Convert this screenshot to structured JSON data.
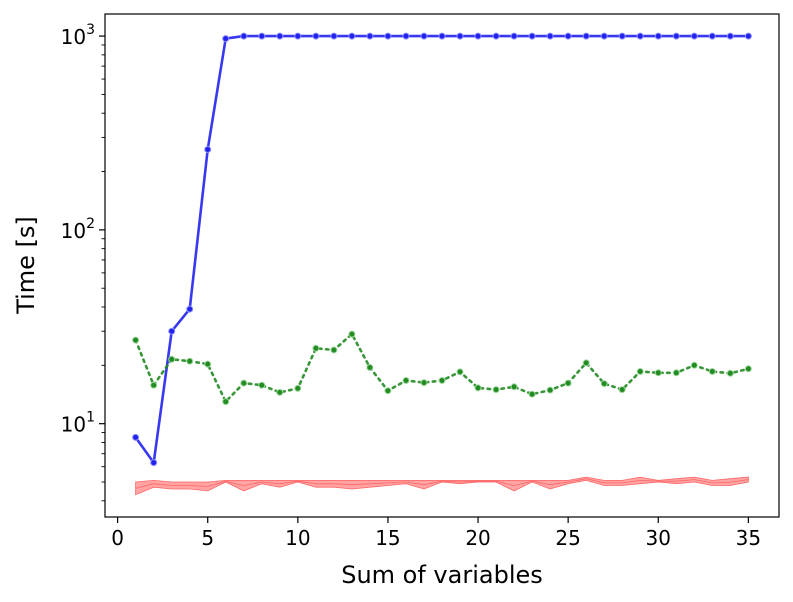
{
  "chart_data": {
    "type": "line",
    "xlabel": "Sum of variables",
    "ylabel": "Time [s]",
    "xlim": [
      -0.7,
      36.7
    ],
    "ylim": [
      3.3,
      1300
    ],
    "yscale": "log",
    "xticks": [
      0,
      5,
      10,
      15,
      20,
      25,
      30,
      35
    ],
    "xtick_labels": [
      "0",
      "5",
      "10",
      "15",
      "20",
      "25",
      "30",
      "35"
    ],
    "yticks": [
      10,
      100,
      1000
    ],
    "ytick_labels": [
      {
        "base": "10",
        "exp": "1"
      },
      {
        "base": "10",
        "exp": "2"
      },
      {
        "base": "10",
        "exp": "3"
      }
    ],
    "grid": false,
    "legend": false,
    "series": [
      {
        "color": "#2222ee",
        "style": "solid-markers",
        "x": [
          1,
          2,
          3,
          4,
          5,
          6,
          7,
          8,
          9,
          10,
          11,
          12,
          13,
          14,
          15,
          16,
          17,
          18,
          19,
          20,
          21,
          22,
          23,
          24,
          25,
          26,
          27,
          28,
          29,
          30,
          31,
          32,
          33,
          34,
          35
        ],
        "y": [
          8.5,
          6.3,
          30,
          39,
          260,
          970,
          1000,
          1000,
          1000,
          1000,
          1000,
          1000,
          1000,
          1000,
          1000,
          1000,
          1000,
          1000,
          1000,
          1000,
          1000,
          1000,
          1000,
          1000,
          1000,
          1000,
          1000,
          1000,
          1000,
          1000,
          1000,
          1000,
          1000,
          1000,
          1000
        ]
      },
      {
        "color": "#228b22",
        "style": "dotted-markers",
        "x": [
          1,
          2,
          3,
          4,
          5,
          6,
          7,
          8,
          9,
          10,
          11,
          12,
          13,
          14,
          15,
          16,
          17,
          18,
          19,
          20,
          21,
          22,
          23,
          24,
          25,
          26,
          27,
          28,
          29,
          30,
          31,
          32,
          33,
          34,
          35
        ],
        "y": [
          27,
          15.8,
          21.5,
          21,
          20.3,
          13,
          16.2,
          15.8,
          14.5,
          15.2,
          24.5,
          24,
          29,
          19.5,
          14.8,
          16.7,
          16.3,
          16.7,
          18.5,
          15.3,
          15,
          15.5,
          14.2,
          14.9,
          16.2,
          20.6,
          16.1,
          15,
          18.6,
          18.3,
          18.3,
          20,
          18.6,
          18.2,
          19.2
        ]
      },
      {
        "color": "#ff6666",
        "style": "band",
        "x": [
          1,
          2,
          3,
          4,
          5,
          6,
          7,
          8,
          9,
          10,
          11,
          12,
          13,
          14,
          15,
          16,
          17,
          18,
          19,
          20,
          21,
          22,
          23,
          24,
          25,
          26,
          27,
          28,
          29,
          30,
          31,
          32,
          33,
          34,
          35
        ],
        "y_low": [
          4.3,
          4.7,
          4.6,
          4.6,
          4.5,
          5.0,
          4.5,
          4.9,
          4.7,
          5.0,
          4.7,
          4.7,
          4.6,
          4.7,
          4.8,
          4.9,
          4.6,
          5.0,
          4.9,
          5.0,
          5.0,
          4.5,
          5.0,
          4.6,
          4.9,
          5.1,
          4.8,
          4.8,
          4.9,
          5.0,
          4.9,
          5.0,
          4.8,
          4.8,
          5.0
        ],
        "y_high": [
          5.0,
          5.1,
          5.0,
          5.0,
          5.0,
          5.1,
          5.1,
          5.1,
          5.1,
          5.1,
          5.1,
          5.1,
          5.1,
          5.1,
          5.1,
          5.1,
          5.1,
          5.1,
          5.1,
          5.1,
          5.1,
          5.1,
          5.1,
          5.1,
          5.1,
          5.3,
          5.1,
          5.1,
          5.3,
          5.1,
          5.2,
          5.3,
          5.1,
          5.2,
          5.3
        ]
      }
    ]
  }
}
